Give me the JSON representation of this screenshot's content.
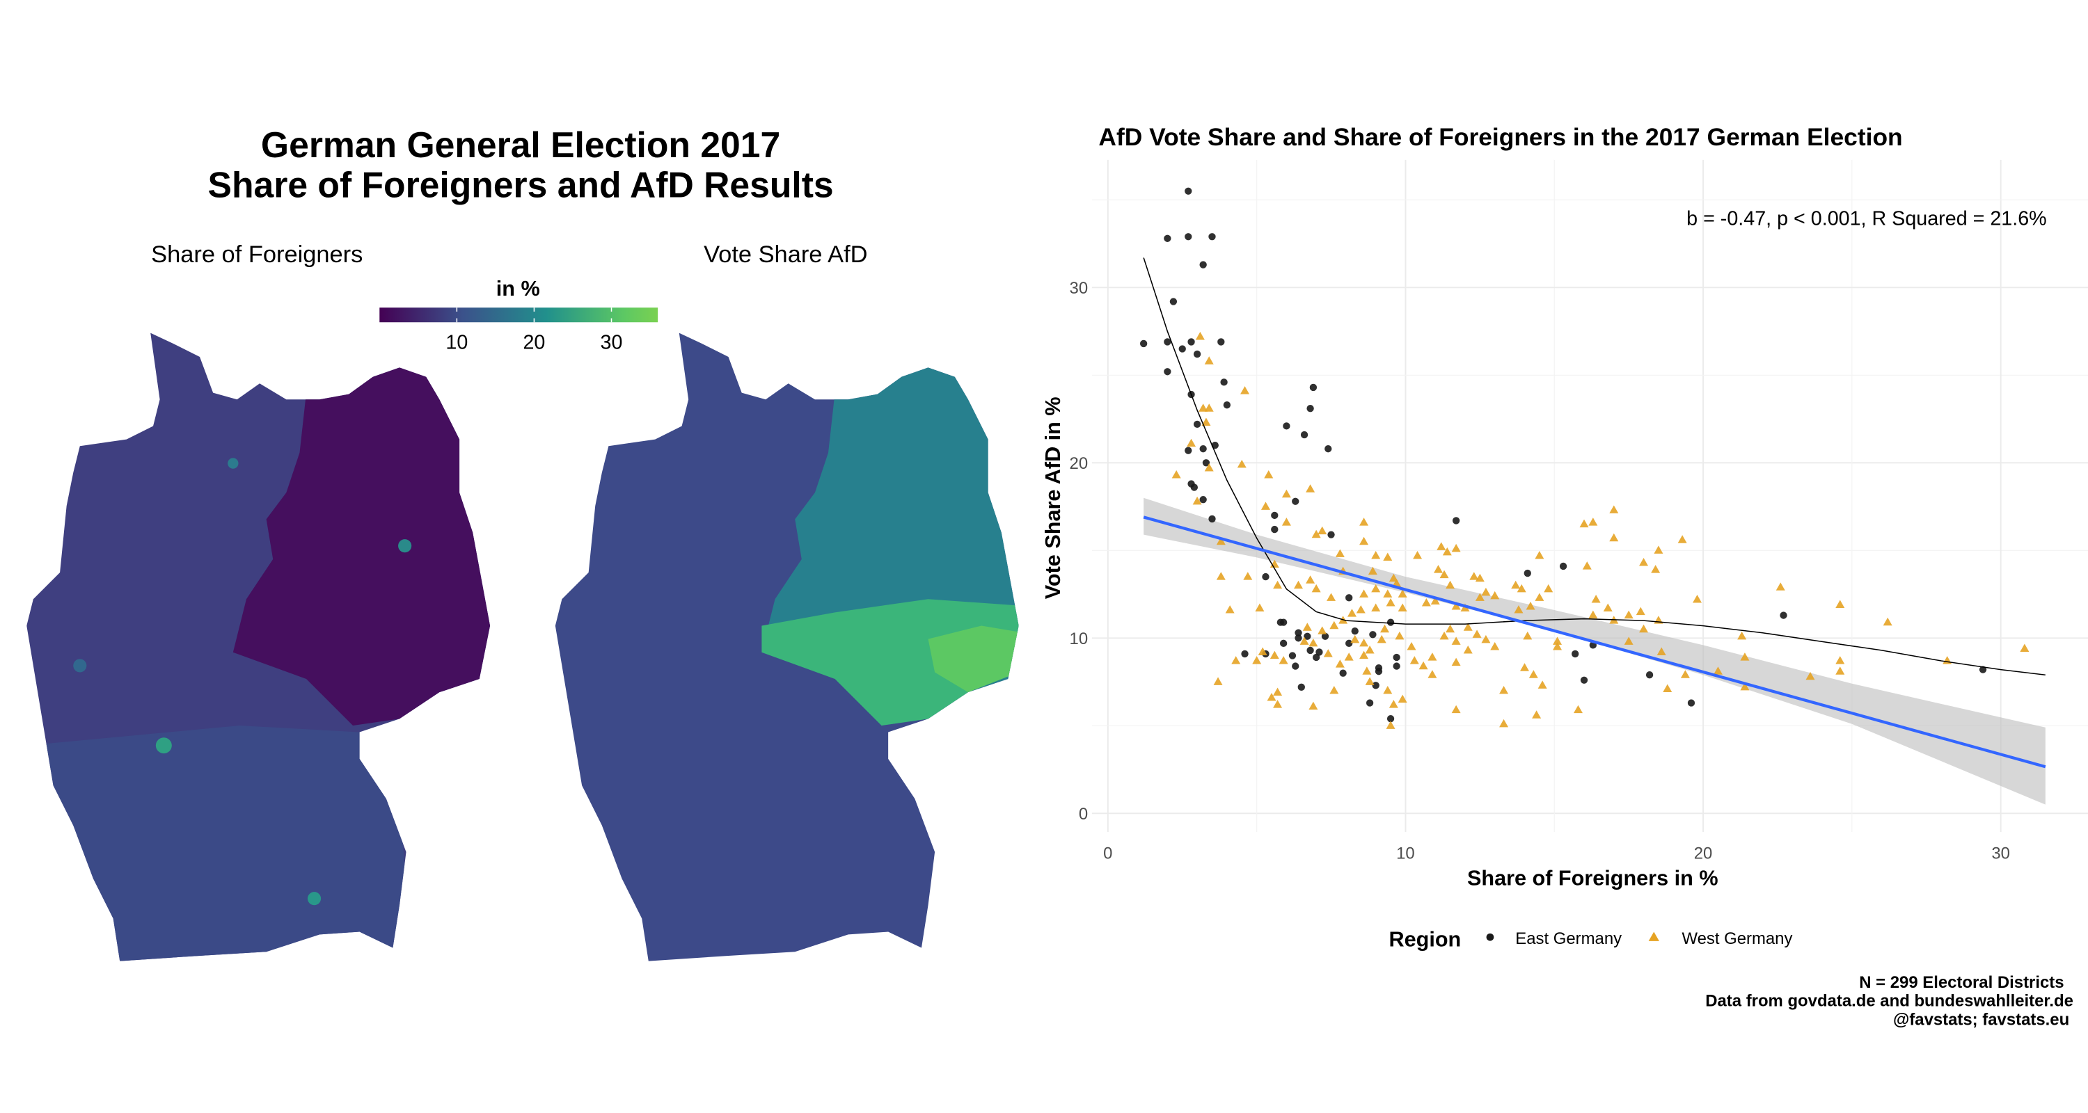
{
  "left": {
    "title_line1": "German General Election 2017",
    "title_line2": "Share of Foreigners and AfD Results",
    "map1_title": "Share of Foreigners",
    "map2_title": "Vote Share AfD",
    "legend_title": "in %",
    "legend_ticks": [
      "10",
      "20",
      "30"
    ],
    "legend_range": [
      0,
      36
    ],
    "palette": [
      "#440154",
      "#3b528b",
      "#21908c",
      "#5dc863",
      "#7ad151"
    ],
    "map1_colors": {
      "west": "#3f3f80",
      "east": "#450f5e",
      "south": "#3b4a87"
    },
    "map2_colors": {
      "west": "#3d4a89",
      "east": "#27808e",
      "saxony": "#3bb57a",
      "hotspot": "#5cc863"
    }
  },
  "chart_data": {
    "type": "scatter",
    "title": "AfD Vote Share and Share of Foreigners in the 2017 German Election",
    "annotation": "b = -0.47, p < 0.001, R Squared = 21.6%",
    "xlabel": "Share of Foreigners in %",
    "ylabel": "Vote Share AfD in %",
    "xlim": [
      0,
      32
    ],
    "ylim": [
      0,
      36
    ],
    "xticks": [
      "0",
      "10",
      "20",
      "30"
    ],
    "yticks": [
      "0",
      "10",
      "20",
      "30"
    ],
    "grid": true,
    "legend_title": "Region",
    "legend_position": "bottom",
    "series": [
      {
        "name": "East Germany",
        "marker": "circle",
        "color": "#1a1a1a",
        "points": [
          [
            2.7,
            35.5
          ],
          [
            2.0,
            32.8
          ],
          [
            2.7,
            32.9
          ],
          [
            3.5,
            32.9
          ],
          [
            3.2,
            31.3
          ],
          [
            2.2,
            29.2
          ],
          [
            1.2,
            26.8
          ],
          [
            2.0,
            26.9
          ],
          [
            2.8,
            26.9
          ],
          [
            3.8,
            26.9
          ],
          [
            2.5,
            26.5
          ],
          [
            3.0,
            26.2
          ],
          [
            2.0,
            25.2
          ],
          [
            3.9,
            24.6
          ],
          [
            6.9,
            24.3
          ],
          [
            6.8,
            23.1
          ],
          [
            2.8,
            23.9
          ],
          [
            4.0,
            23.3
          ],
          [
            3.0,
            22.2
          ],
          [
            6.0,
            22.1
          ],
          [
            6.6,
            21.6
          ],
          [
            3.6,
            21.0
          ],
          [
            3.2,
            20.8
          ],
          [
            2.7,
            20.7
          ],
          [
            7.4,
            20.8
          ],
          [
            3.3,
            20.0
          ],
          [
            2.8,
            18.8
          ],
          [
            2.9,
            18.6
          ],
          [
            3.2,
            17.9
          ],
          [
            6.3,
            17.8
          ],
          [
            3.5,
            16.8
          ],
          [
            5.6,
            17.0
          ],
          [
            5.6,
            16.2
          ],
          [
            11.7,
            16.7
          ],
          [
            7.5,
            15.9
          ],
          [
            5.3,
            13.5
          ],
          [
            14.1,
            13.7
          ],
          [
            15.3,
            14.1
          ],
          [
            8.1,
            12.3
          ],
          [
            5.8,
            10.9
          ],
          [
            5.9,
            10.9
          ],
          [
            9.5,
            10.9
          ],
          [
            6.4,
            10.3
          ],
          [
            6.4,
            10.0
          ],
          [
            6.7,
            10.1
          ],
          [
            7.3,
            10.1
          ],
          [
            8.3,
            10.4
          ],
          [
            8.9,
            10.2
          ],
          [
            5.9,
            9.7
          ],
          [
            8.1,
            9.7
          ],
          [
            6.8,
            9.3
          ],
          [
            7.1,
            9.2
          ],
          [
            4.6,
            9.1
          ],
          [
            5.3,
            9.1
          ],
          [
            6.2,
            9.0
          ],
          [
            7.0,
            8.9
          ],
          [
            6.3,
            8.4
          ],
          [
            9.7,
            8.9
          ],
          [
            9.1,
            8.3
          ],
          [
            9.7,
            8.4
          ],
          [
            9.1,
            8.1
          ],
          [
            7.9,
            8.0
          ],
          [
            9.0,
            7.3
          ],
          [
            6.5,
            7.2
          ],
          [
            8.8,
            6.3
          ],
          [
            9.5,
            5.4
          ],
          [
            15.7,
            9.1
          ],
          [
            16.3,
            9.6
          ],
          [
            16.0,
            7.6
          ],
          [
            18.2,
            7.9
          ],
          [
            19.6,
            6.3
          ],
          [
            22.7,
            11.3
          ],
          [
            29.4,
            8.2
          ]
        ]
      },
      {
        "name": "West Germany",
        "marker": "triangle",
        "color": "#e6a323",
        "points": [
          [
            3.1,
            27.2
          ],
          [
            3.4,
            25.8
          ],
          [
            4.6,
            24.1
          ],
          [
            3.2,
            23.1
          ],
          [
            3.4,
            23.1
          ],
          [
            3.3,
            22.3
          ],
          [
            2.8,
            21.1
          ],
          [
            3.4,
            19.7
          ],
          [
            2.3,
            19.3
          ],
          [
            4.5,
            19.9
          ],
          [
            5.4,
            19.3
          ],
          [
            6.0,
            18.2
          ],
          [
            6.8,
            18.5
          ],
          [
            3.0,
            17.8
          ],
          [
            5.3,
            17.5
          ],
          [
            6.0,
            16.6
          ],
          [
            3.8,
            15.5
          ],
          [
            7.0,
            15.9
          ],
          [
            7.2,
            16.1
          ],
          [
            8.6,
            16.6
          ],
          [
            3.8,
            13.5
          ],
          [
            4.7,
            13.5
          ],
          [
            5.6,
            14.2
          ],
          [
            4.1,
            11.6
          ],
          [
            5.1,
            11.7
          ],
          [
            5.7,
            13.0
          ],
          [
            6.4,
            13.0
          ],
          [
            6.8,
            13.3
          ],
          [
            7.0,
            12.8
          ],
          [
            7.5,
            12.3
          ],
          [
            7.8,
            14.8
          ],
          [
            7.9,
            13.8
          ],
          [
            8.6,
            15.5
          ],
          [
            9.0,
            14.7
          ],
          [
            9.4,
            14.6
          ],
          [
            8.9,
            13.8
          ],
          [
            9.6,
            13.4
          ],
          [
            9.7,
            13.1
          ],
          [
            9.4,
            12.5
          ],
          [
            8.6,
            12.5
          ],
          [
            9.0,
            12.8
          ],
          [
            9.9,
            12.5
          ],
          [
            10.4,
            14.7
          ],
          [
            11.2,
            15.2
          ],
          [
            11.4,
            14.9
          ],
          [
            11.7,
            15.1
          ],
          [
            11.1,
            13.9
          ],
          [
            11.3,
            13.6
          ],
          [
            11.5,
            13.0
          ],
          [
            12.3,
            13.5
          ],
          [
            12.5,
            13.4
          ],
          [
            12.7,
            12.6
          ],
          [
            13.0,
            12.4
          ],
          [
            13.7,
            13.0
          ],
          [
            13.9,
            12.8
          ],
          [
            14.5,
            14.7
          ],
          [
            14.8,
            12.8
          ],
          [
            14.5,
            12.3
          ],
          [
            14.2,
            11.8
          ],
          [
            13.8,
            11.6
          ],
          [
            12.5,
            12.3
          ],
          [
            10.7,
            12.0
          ],
          [
            11.0,
            12.1
          ],
          [
            12.0,
            11.7
          ],
          [
            11.7,
            11.8
          ],
          [
            9.9,
            11.7
          ],
          [
            9.5,
            12.0
          ],
          [
            9.0,
            11.7
          ],
          [
            8.5,
            11.6
          ],
          [
            8.2,
            11.4
          ],
          [
            7.9,
            11.0
          ],
          [
            7.6,
            10.7
          ],
          [
            6.7,
            10.6
          ],
          [
            7.2,
            10.4
          ],
          [
            6.6,
            9.8
          ],
          [
            6.9,
            9.7
          ],
          [
            7.4,
            9.1
          ],
          [
            7.8,
            8.5
          ],
          [
            8.1,
            8.9
          ],
          [
            8.3,
            9.9
          ],
          [
            8.6,
            9.7
          ],
          [
            8.8,
            9.3
          ],
          [
            8.6,
            9.0
          ],
          [
            8.7,
            8.1
          ],
          [
            8.8,
            7.5
          ],
          [
            9.2,
            9.9
          ],
          [
            9.3,
            10.5
          ],
          [
            9.8,
            10.1
          ],
          [
            10.2,
            9.5
          ],
          [
            9.9,
            6.5
          ],
          [
            9.6,
            6.2
          ],
          [
            9.5,
            5.0
          ],
          [
            9.4,
            7.0
          ],
          [
            10.3,
            8.7
          ],
          [
            10.6,
            8.4
          ],
          [
            10.9,
            7.9
          ],
          [
            10.9,
            8.9
          ],
          [
            11.3,
            10.1
          ],
          [
            11.7,
            9.8
          ],
          [
            11.5,
            10.5
          ],
          [
            12.1,
            10.6
          ],
          [
            12.4,
            10.2
          ],
          [
            12.7,
            9.9
          ],
          [
            13.0,
            9.5
          ],
          [
            12.1,
            9.3
          ],
          [
            11.7,
            8.6
          ],
          [
            11.7,
            5.9
          ],
          [
            13.3,
            7.0
          ],
          [
            13.3,
            5.1
          ],
          [
            14.0,
            8.3
          ],
          [
            14.3,
            7.9
          ],
          [
            14.6,
            7.3
          ],
          [
            14.4,
            5.6
          ],
          [
            14.1,
            10.1
          ],
          [
            15.1,
            9.5
          ],
          [
            15.8,
            5.9
          ],
          [
            15.1,
            9.8
          ],
          [
            16.0,
            16.5
          ],
          [
            16.3,
            16.6
          ],
          [
            17.0,
            17.3
          ],
          [
            17.0,
            15.7
          ],
          [
            16.1,
            14.1
          ],
          [
            16.4,
            12.2
          ],
          [
            16.8,
            11.7
          ],
          [
            16.3,
            11.3
          ],
          [
            17.0,
            11.0
          ],
          [
            17.5,
            11.3
          ],
          [
            17.9,
            11.5
          ],
          [
            18.0,
            10.5
          ],
          [
            17.5,
            9.8
          ],
          [
            18.0,
            14.3
          ],
          [
            18.5,
            15.0
          ],
          [
            18.4,
            13.9
          ],
          [
            19.3,
            15.6
          ],
          [
            18.5,
            11.0
          ],
          [
            18.6,
            9.2
          ],
          [
            18.8,
            7.1
          ],
          [
            19.4,
            7.9
          ],
          [
            19.8,
            12.2
          ],
          [
            20.5,
            8.1
          ],
          [
            21.3,
            10.1
          ],
          [
            21.4,
            8.9
          ],
          [
            21.4,
            7.2
          ],
          [
            22.6,
            12.9
          ],
          [
            23.6,
            7.8
          ],
          [
            24.6,
            11.9
          ],
          [
            24.6,
            8.7
          ],
          [
            24.6,
            8.1
          ],
          [
            26.2,
            10.9
          ],
          [
            28.2,
            8.7
          ],
          [
            30.8,
            9.4
          ],
          [
            3.7,
            7.5
          ],
          [
            4.3,
            8.7
          ],
          [
            5.0,
            8.7
          ],
          [
            5.2,
            9.2
          ],
          [
            5.7,
            6.9
          ],
          [
            5.5,
            6.6
          ],
          [
            5.7,
            6.2
          ],
          [
            6.9,
            6.1
          ],
          [
            7.6,
            7.0
          ],
          [
            5.9,
            8.7
          ],
          [
            5.6,
            9.0
          ]
        ]
      }
    ],
    "linear_fit": {
      "color": "#3366ff",
      "x": [
        1.2,
        31.5
      ],
      "y": [
        16.9,
        2.66
      ],
      "ci_x": [
        1.2,
        5,
        10,
        15,
        20,
        25,
        31.5
      ],
      "ci_lower": [
        15.9,
        14.6,
        12.6,
        10.4,
        7.9,
        5.1,
        0.5
      ],
      "ci_upper": [
        18.0,
        15.9,
        13.5,
        11.6,
        9.6,
        7.4,
        4.9
      ]
    },
    "loess_fit": {
      "color": "#000000",
      "x": [
        1.2,
        2,
        3,
        4,
        5,
        6,
        7,
        8,
        10,
        12,
        14,
        16,
        18,
        20,
        22,
        24,
        26,
        28,
        30,
        31.5
      ],
      "y": [
        31.7,
        27.5,
        23.0,
        19.0,
        15.7,
        12.8,
        11.5,
        11.0,
        10.8,
        10.8,
        11.0,
        11.1,
        11.0,
        10.7,
        10.3,
        9.8,
        9.3,
        8.7,
        8.2,
        7.9
      ]
    },
    "caption": [
      "N = 299 Electoral Districts",
      "Data from govdata.de and bundeswahlleiter.de",
      "@favstats; favstats.eu"
    ]
  }
}
